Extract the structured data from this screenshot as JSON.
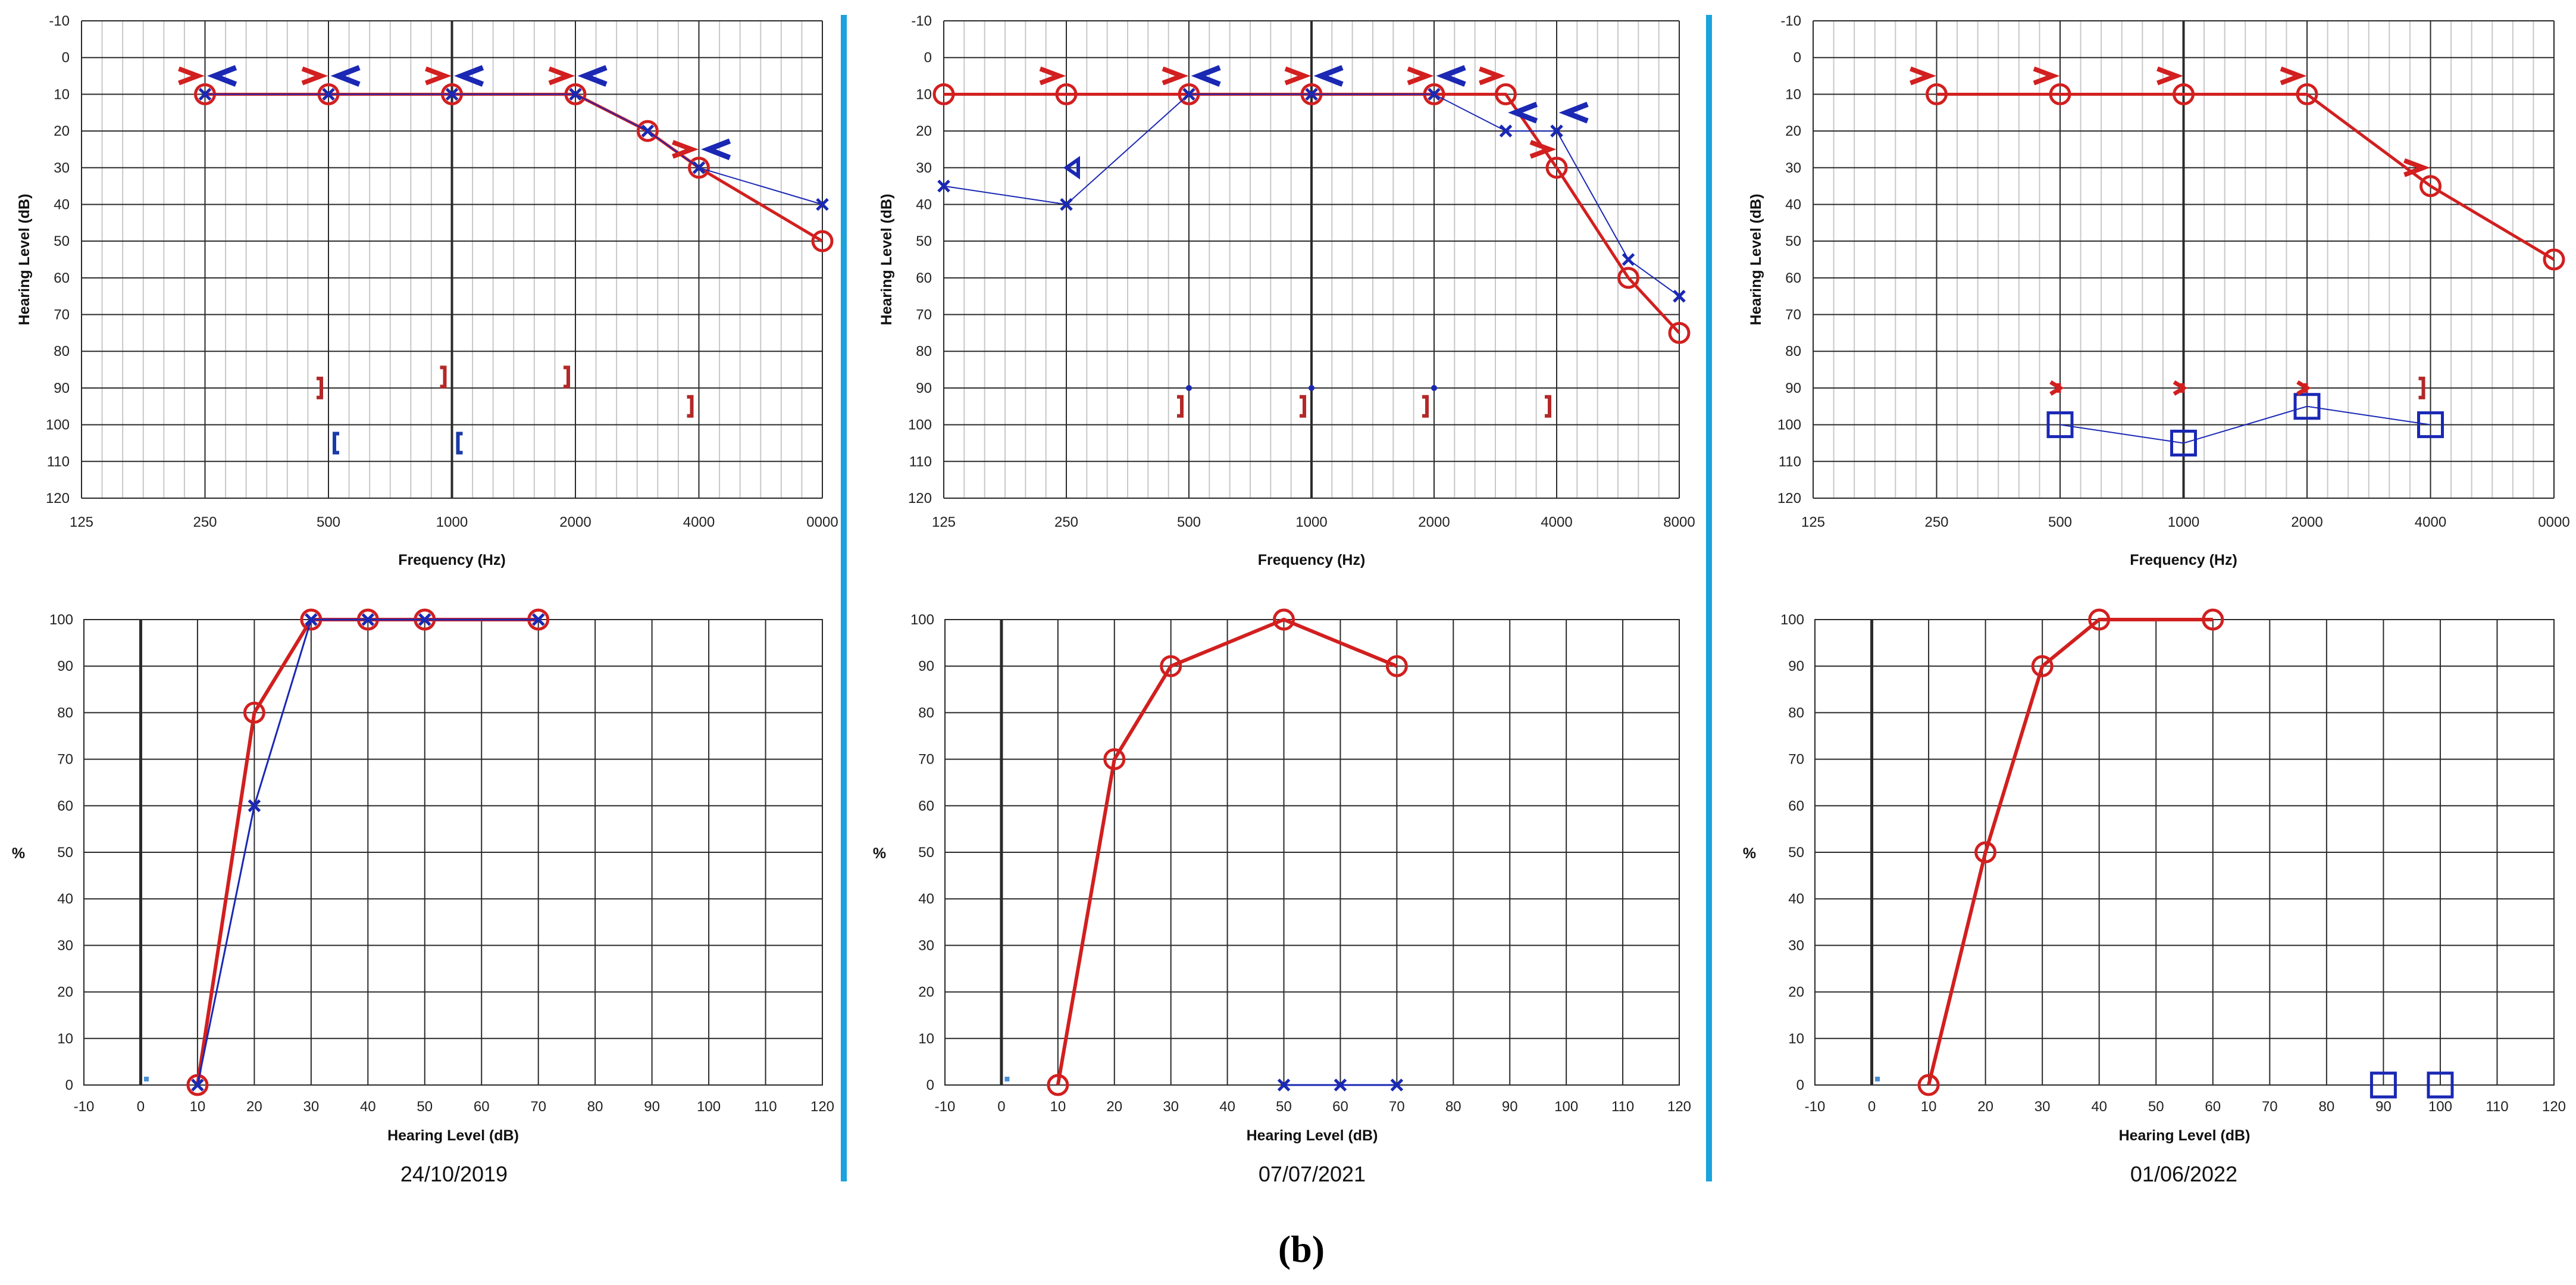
{
  "figure_label": "(b)",
  "colors": {
    "right_ear": "#d21f1f",
    "left_ear": "#1a28b4",
    "bone_right": "#b42828",
    "bone_left": "#1a3aa8",
    "separator": "#1aa3dc",
    "grid": "#c8c8c8",
    "grid_major": "#2a2a2a"
  },
  "chart_data": [
    {
      "id": "audiogram-2019",
      "type": "line",
      "date": "24/10/2019",
      "xlabel": "Frequency (Hz)",
      "ylabel": "Hearing Level (dB)",
      "x_ticks": [
        "125",
        "250",
        "500",
        "1000",
        "2000",
        "4000",
        "0000"
      ],
      "y_ticks": [
        "-10",
        "0",
        "10",
        "20",
        "30",
        "40",
        "50",
        "60",
        "70",
        "80",
        "90",
        "100",
        "110",
        "120"
      ],
      "ylim": [
        -10,
        120
      ],
      "series": [
        {
          "name": "Right ear air conduction",
          "color": "#d21f1f",
          "symbol": "circle",
          "line": true,
          "points": [
            [
              250,
              10
            ],
            [
              500,
              10
            ],
            [
              1000,
              10
            ],
            [
              2000,
              10
            ],
            [
              3000,
              20
            ],
            [
              4000,
              30
            ],
            [
              8000,
              50
            ]
          ]
        },
        {
          "name": "Left ear air conduction",
          "color": "#1a28b4",
          "symbol": "x",
          "line": true,
          "points": [
            [
              250,
              10
            ],
            [
              500,
              10
            ],
            [
              1000,
              10
            ],
            [
              2000,
              10
            ],
            [
              3000,
              20
            ],
            [
              4000,
              30
            ],
            [
              8000,
              40
            ]
          ]
        },
        {
          "name": "Right ear masked",
          "color": "#d21f1f",
          "symbol": "masked-right",
          "line": false,
          "points": [
            [
              250,
              5
            ],
            [
              500,
              5
            ],
            [
              1000,
              5
            ],
            [
              2000,
              5
            ],
            [
              4000,
              25
            ]
          ]
        },
        {
          "name": "Left ear masked",
          "color": "#1a28b4",
          "symbol": "masked-left",
          "line": false,
          "points": [
            [
              250,
              5
            ],
            [
              500,
              5
            ],
            [
              1000,
              5
            ],
            [
              2000,
              5
            ],
            [
              4000,
              25
            ]
          ]
        },
        {
          "name": "Right bone masked",
          "color": "#b42828",
          "symbol": "bracket-right",
          "line": false,
          "points": [
            [
              500,
              90
            ],
            [
              1000,
              87
            ],
            [
              2000,
              87
            ],
            [
              4000,
              95
            ]
          ]
        },
        {
          "name": "Left bone masked",
          "color": "#1a3aa8",
          "symbol": "bracket-left",
          "line": false,
          "points": [
            [
              500,
              105
            ],
            [
              1000,
              105
            ]
          ]
        }
      ]
    },
    {
      "id": "audiogram-2021",
      "type": "line",
      "date": "07/07/2021",
      "xlabel": "Frequency (Hz)",
      "ylabel": "Hearing Level (dB)",
      "x_ticks": [
        "125",
        "250",
        "500",
        "1000",
        "2000",
        "4000",
        "8000"
      ],
      "y_ticks": [
        "-10",
        "0",
        "10",
        "20",
        "30",
        "40",
        "50",
        "60",
        "70",
        "80",
        "90",
        "100",
        "110",
        "120"
      ],
      "ylim": [
        -10,
        120
      ],
      "series": [
        {
          "name": "Right ear air conduction",
          "color": "#d21f1f",
          "symbol": "circle",
          "line": true,
          "points": [
            [
              125,
              10
            ],
            [
              250,
              10
            ],
            [
              500,
              10
            ],
            [
              1000,
              10
            ],
            [
              2000,
              10
            ],
            [
              3000,
              10
            ],
            [
              4000,
              30
            ],
            [
              6000,
              60
            ],
            [
              8000,
              75
            ]
          ]
        },
        {
          "name": "Left ear air conduction",
          "color": "#1a28b4",
          "symbol": "x",
          "line": true,
          "points": [
            [
              125,
              35
            ],
            [
              250,
              40
            ],
            [
              500,
              10
            ],
            [
              1000,
              10
            ],
            [
              2000,
              10
            ],
            [
              3000,
              20
            ],
            [
              4000,
              20
            ],
            [
              6000,
              55
            ],
            [
              8000,
              65
            ]
          ]
        },
        {
          "name": "Right ear masked",
          "color": "#d21f1f",
          "symbol": "masked-right",
          "line": false,
          "points": [
            [
              250,
              5
            ],
            [
              500,
              5
            ],
            [
              1000,
              5
            ],
            [
              2000,
              5
            ],
            [
              3000,
              5
            ],
            [
              4000,
              25
            ]
          ]
        },
        {
          "name": "Left ear masked",
          "color": "#1a28b4",
          "symbol": "masked-left",
          "line": false,
          "points": [
            [
              500,
              5
            ],
            [
              1000,
              5
            ],
            [
              2000,
              5
            ],
            [
              3000,
              15
            ],
            [
              4000,
              15
            ]
          ]
        },
        {
          "name": "Left ear no-response",
          "color": "#1a28b4",
          "symbol": "triangle",
          "line": false,
          "points": [
            [
              250,
              30
            ]
          ]
        },
        {
          "name": "Left bone",
          "color": "#1a28b4",
          "symbol": "dot",
          "line": false,
          "points": [
            [
              500,
              90
            ],
            [
              1000,
              90
            ],
            [
              2000,
              90
            ]
          ]
        },
        {
          "name": "Right bone masked",
          "color": "#b42828",
          "symbol": "bracket-right",
          "line": false,
          "points": [
            [
              500,
              95
            ],
            [
              1000,
              95
            ],
            [
              2000,
              95
            ],
            [
              4000,
              95
            ]
          ]
        }
      ]
    },
    {
      "id": "audiogram-2022",
      "type": "line",
      "date": "01/06/2022",
      "xlabel": "Frequency (Hz)",
      "ylabel": "Hearing Level (dB)",
      "x_ticks": [
        "125",
        "250",
        "500",
        "1000",
        "2000",
        "4000",
        "0000"
      ],
      "y_ticks": [
        "-10",
        "0",
        "10",
        "20",
        "30",
        "40",
        "50",
        "60",
        "70",
        "80",
        "90",
        "100",
        "110",
        "120"
      ],
      "ylim": [
        -10,
        120
      ],
      "series": [
        {
          "name": "Right ear air conduction",
          "color": "#d21f1f",
          "symbol": "circle",
          "line": true,
          "points": [
            [
              250,
              10
            ],
            [
              500,
              10
            ],
            [
              1000,
              10
            ],
            [
              2000,
              10
            ],
            [
              4000,
              35
            ],
            [
              8000,
              55
            ]
          ]
        },
        {
          "name": "Right ear masked",
          "color": "#d21f1f",
          "symbol": "masked-right",
          "line": false,
          "points": [
            [
              250,
              5
            ],
            [
              500,
              5
            ],
            [
              1000,
              5
            ],
            [
              2000,
              5
            ],
            [
              4000,
              30
            ]
          ]
        },
        {
          "name": "Left bone masked",
          "color": "#1a28b4",
          "symbol": "square",
          "line": true,
          "points": [
            [
              500,
              100
            ],
            [
              1000,
              105
            ],
            [
              2000,
              95
            ],
            [
              4000,
              100
            ]
          ]
        },
        {
          "name": "Right bone",
          "color": "#d21f1f",
          "symbol": "star",
          "line": false,
          "points": [
            [
              500,
              90
            ],
            [
              1000,
              90
            ],
            [
              2000,
              90
            ]
          ]
        },
        {
          "name": "Right bone masked",
          "color": "#b42828",
          "symbol": "bracket-right",
          "line": false,
          "points": [
            [
              4000,
              90
            ]
          ]
        }
      ]
    },
    {
      "id": "speech-2019",
      "type": "line",
      "date": "24/10/2019",
      "xlabel": "Hearing Level (dB)",
      "ylabel": "%",
      "x_ticks": [
        "-10",
        "0",
        "10",
        "20",
        "30",
        "40",
        "50",
        "60",
        "70",
        "80",
        "90",
        "100",
        "110",
        "120"
      ],
      "y_ticks": [
        "0",
        "10",
        "20",
        "30",
        "40",
        "50",
        "60",
        "70",
        "80",
        "90",
        "100"
      ],
      "xlim": [
        -10,
        120
      ],
      "ylim": [
        0,
        100
      ],
      "series": [
        {
          "name": "Right ear",
          "color": "#d21f1f",
          "symbol": "circle",
          "line": true,
          "points": [
            [
              10,
              0
            ],
            [
              20,
              80
            ],
            [
              30,
              100
            ],
            [
              40,
              100
            ],
            [
              50,
              100
            ],
            [
              70,
              100
            ]
          ]
        },
        {
          "name": "Left ear",
          "color": "#1a28b4",
          "symbol": "x",
          "line": true,
          "points": [
            [
              10,
              0
            ],
            [
              20,
              60
            ],
            [
              30,
              100
            ],
            [
              40,
              100
            ],
            [
              50,
              100
            ],
            [
              70,
              100
            ]
          ]
        }
      ]
    },
    {
      "id": "speech-2021",
      "type": "line",
      "date": "07/07/2021",
      "xlabel": "Hearing Level (dB)",
      "ylabel": "%",
      "x_ticks": [
        "-10",
        "0",
        "10",
        "20",
        "30",
        "40",
        "50",
        "60",
        "70",
        "80",
        "90",
        "100",
        "110",
        "120"
      ],
      "y_ticks": [
        "0",
        "10",
        "20",
        "30",
        "40",
        "50",
        "60",
        "70",
        "80",
        "90",
        "100"
      ],
      "xlim": [
        -10,
        120
      ],
      "ylim": [
        0,
        100
      ],
      "series": [
        {
          "name": "Right ear",
          "color": "#d21f1f",
          "symbol": "circle",
          "line": true,
          "points": [
            [
              10,
              0
            ],
            [
              20,
              70
            ],
            [
              30,
              90
            ],
            [
              50,
              100
            ],
            [
              70,
              90
            ]
          ]
        },
        {
          "name": "Left ear",
          "color": "#1a28b4",
          "symbol": "x",
          "line": true,
          "points": [
            [
              50,
              0
            ],
            [
              60,
              0
            ],
            [
              70,
              0
            ]
          ]
        }
      ]
    },
    {
      "id": "speech-2022",
      "type": "line",
      "date": "01/06/2022",
      "xlabel": "Hearing Level (dB)",
      "ylabel": "%",
      "x_ticks": [
        "-10",
        "0",
        "10",
        "20",
        "30",
        "40",
        "50",
        "60",
        "70",
        "80",
        "90",
        "100",
        "110",
        "120"
      ],
      "y_ticks": [
        "0",
        "10",
        "20",
        "30",
        "40",
        "50",
        "60",
        "70",
        "80",
        "90",
        "100"
      ],
      "xlim": [
        -10,
        120
      ],
      "ylim": [
        0,
        100
      ],
      "series": [
        {
          "name": "Right ear",
          "color": "#d21f1f",
          "symbol": "circle",
          "line": true,
          "points": [
            [
              10,
              0
            ],
            [
              20,
              50
            ],
            [
              30,
              90
            ],
            [
              40,
              100
            ],
            [
              60,
              100
            ]
          ]
        },
        {
          "name": "Left ear",
          "color": "#1a28b4",
          "symbol": "square",
          "line": false,
          "points": [
            [
              90,
              0
            ],
            [
              100,
              0
            ]
          ]
        }
      ]
    }
  ]
}
